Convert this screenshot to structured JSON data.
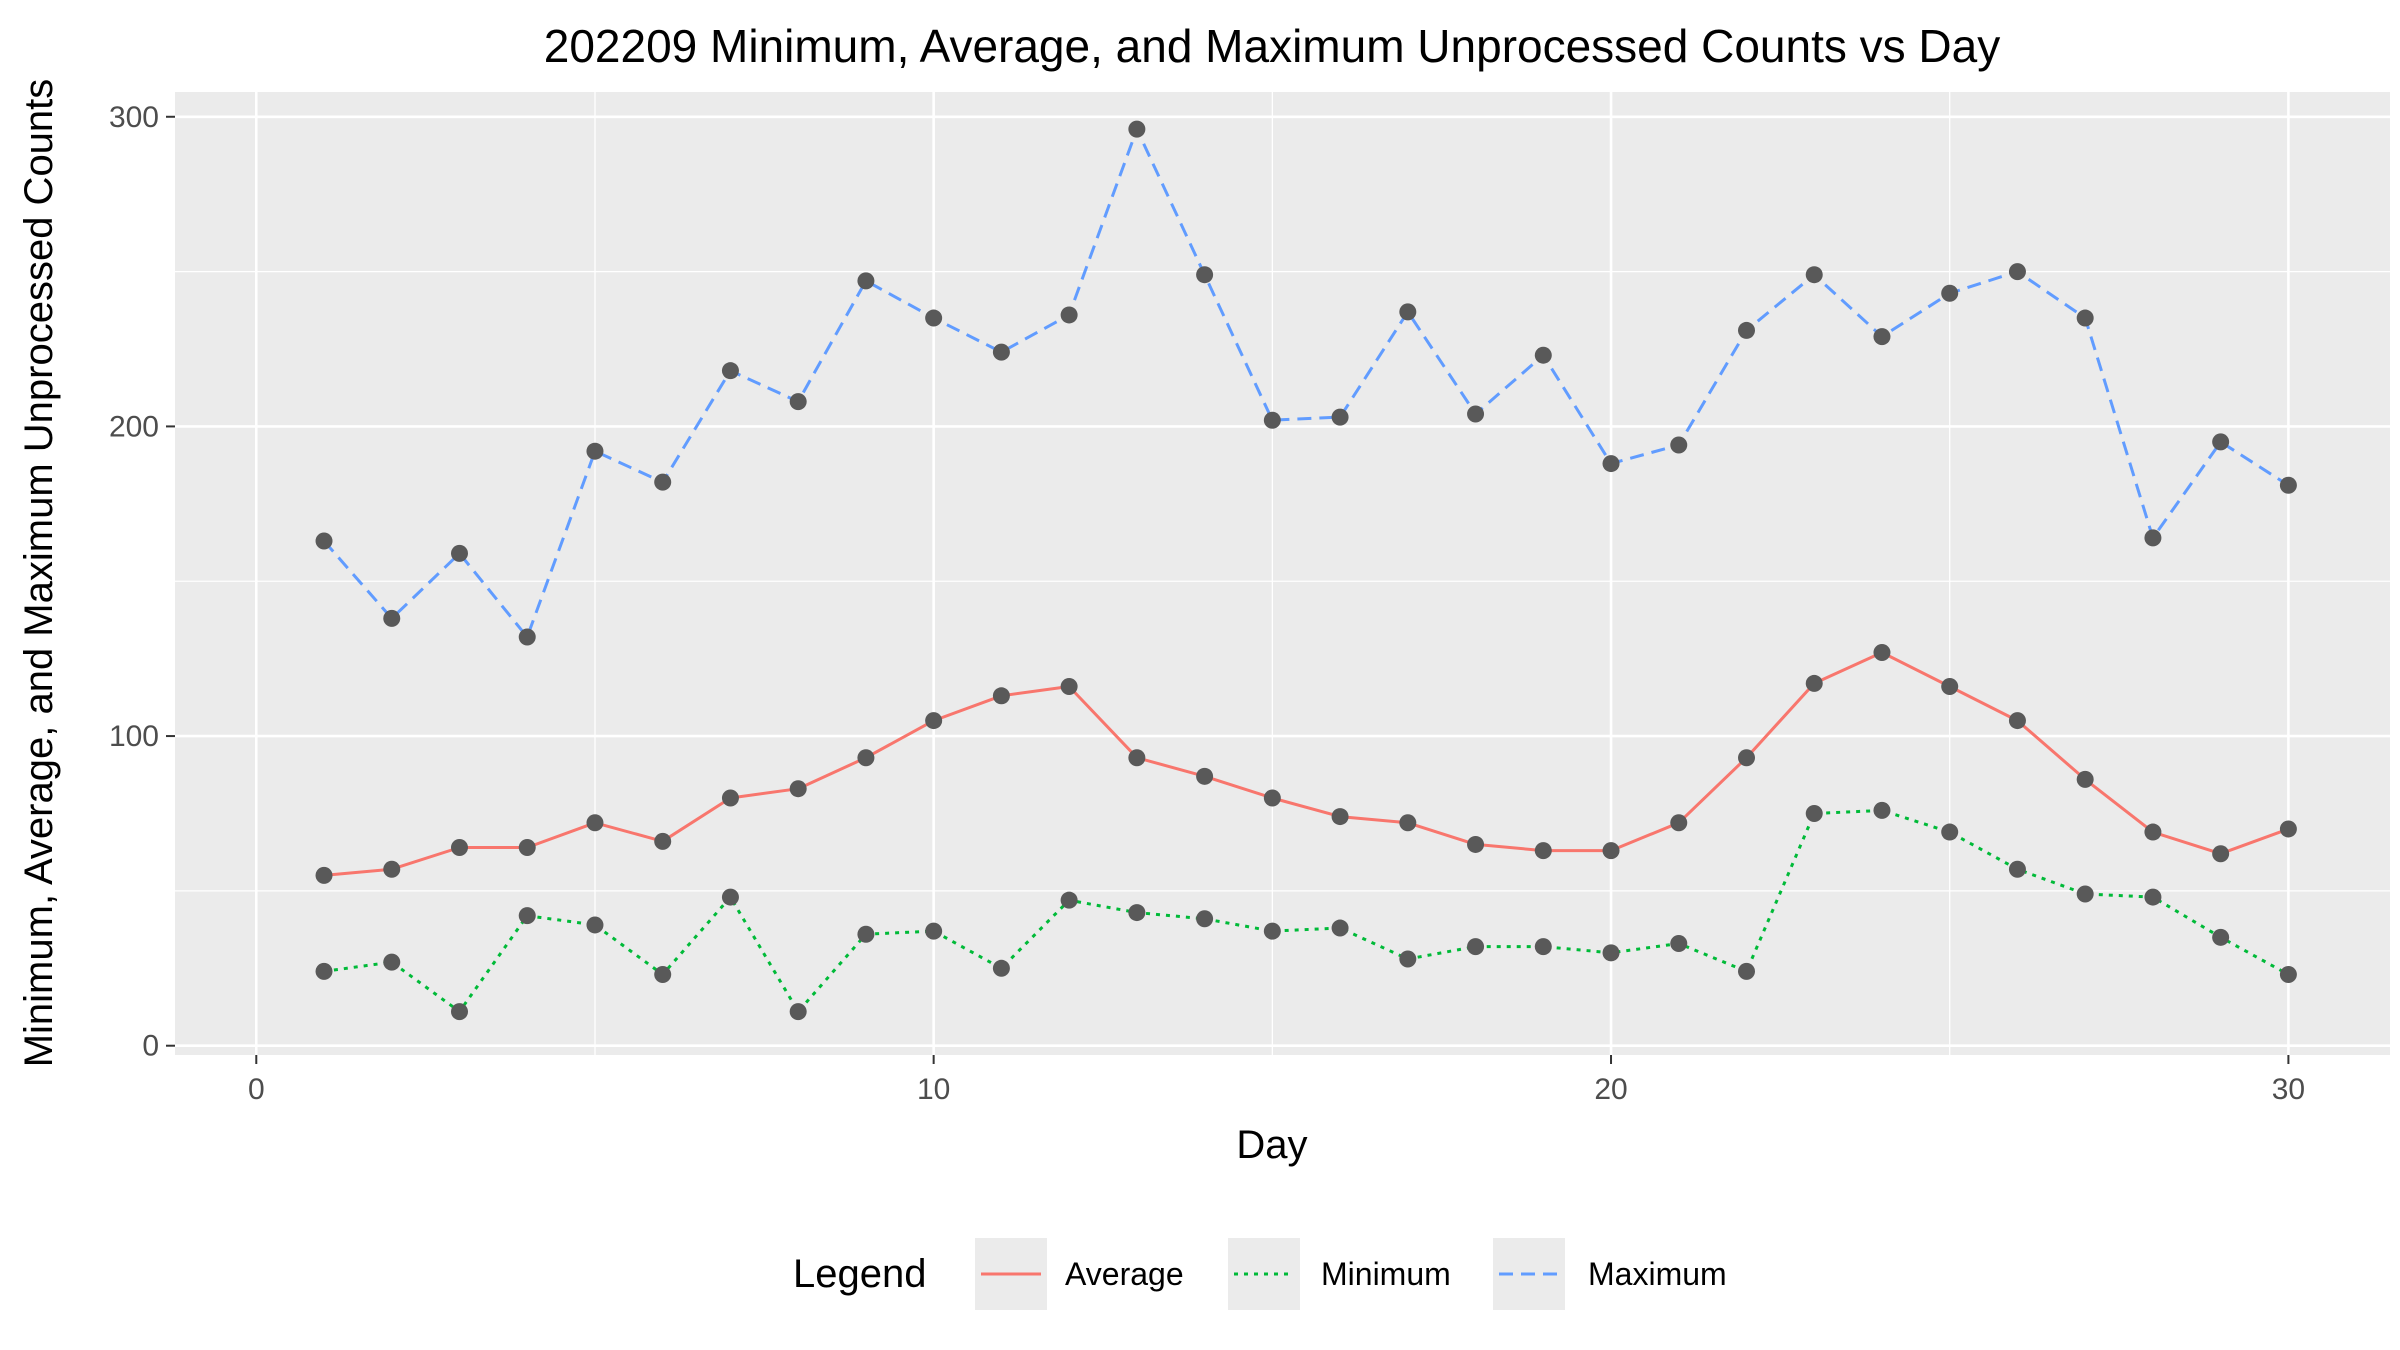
{
  "chart_data": {
    "type": "line",
    "title": "202209 Minimum, Average, and Maximum Unprocessed Counts vs Day",
    "xlabel": "Day",
    "ylabel": "Minimum, Average, and Maximum Unprocessed Counts",
    "xlim": [
      -1.2,
      31.5
    ],
    "ylim": [
      -3,
      308
    ],
    "x_ticks": [
      0,
      10,
      20,
      30
    ],
    "y_ticks": [
      0,
      100,
      200,
      300
    ],
    "x_tick_labels": [
      "0",
      "10",
      "20",
      "30"
    ],
    "y_tick_labels": [
      "0",
      "100",
      "200",
      "300"
    ],
    "grid": true,
    "legend": {
      "title": "Legend",
      "position": "bottom"
    },
    "x": [
      1,
      2,
      3,
      4,
      5,
      6,
      7,
      8,
      9,
      10,
      11,
      12,
      13,
      14,
      15,
      16,
      17,
      18,
      19,
      20,
      21,
      22,
      23,
      24,
      25,
      26,
      27,
      28,
      29,
      30
    ],
    "series": [
      {
        "name": "Average",
        "color": "#F8766D",
        "dash": "solid",
        "values": [
          55,
          57,
          64,
          64,
          72,
          66,
          80,
          83,
          93,
          105,
          113,
          116,
          93,
          87,
          80,
          74,
          72,
          65,
          63,
          63,
          72,
          93,
          117,
          127,
          116,
          105,
          86,
          69,
          62,
          70
        ]
      },
      {
        "name": "Minimum",
        "color": "#00BA38",
        "dash": "dotted",
        "values": [
          24,
          27,
          11,
          42,
          39,
          23,
          48,
          11,
          36,
          37,
          25,
          47,
          43,
          41,
          37,
          38,
          28,
          32,
          32,
          30,
          33,
          24,
          75,
          76,
          69,
          57,
          49,
          48,
          35,
          23
        ]
      },
      {
        "name": "Maximum",
        "color": "#619CFF",
        "dash": "dashed",
        "values": [
          163,
          138,
          159,
          132,
          192,
          182,
          218,
          208,
          247,
          235,
          224,
          236,
          296,
          249,
          202,
          203,
          237,
          204,
          223,
          188,
          194,
          231,
          249,
          229,
          243,
          250,
          235,
          164,
          195,
          181
        ]
      }
    ],
    "point_color": "#595959"
  }
}
